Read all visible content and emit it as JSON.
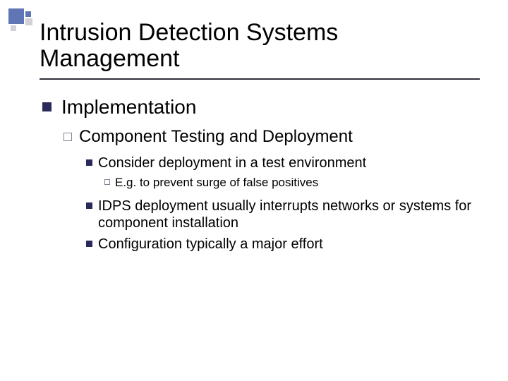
{
  "colors": {
    "navy_bullet": "#29295a",
    "outline_bullet_border": "#818296",
    "deco_blue": "#6076b4",
    "deco_gray": "#d0d2d8",
    "rule": "#30313a",
    "background": "#ffffff",
    "text": "#000000"
  },
  "typography": {
    "family": "Arial",
    "title_fontsize": 34,
    "lvl1_fontsize": 28,
    "lvl2_fontsize": 24,
    "lvl3_fontsize": 20,
    "lvl4_fontsize": 17
  },
  "title": "Intrusion Detection Systems Management",
  "bullets": {
    "lvl1": {
      "text": "Implementation",
      "marker": "navy"
    },
    "lvl2": {
      "text": "Component Testing and Deployment",
      "marker": "outline"
    },
    "lvl3_a": {
      "text": "Consider deployment in a test environment",
      "marker": "navy"
    },
    "lvl4": {
      "text": "E.g. to prevent surge of false positives",
      "marker": "outline"
    },
    "lvl3_b": {
      "text": "IDPS deployment usually interrupts networks or systems for component installation",
      "marker": "navy"
    },
    "lvl3_c": {
      "text": "Configuration typically a major effort",
      "marker": "navy"
    }
  }
}
